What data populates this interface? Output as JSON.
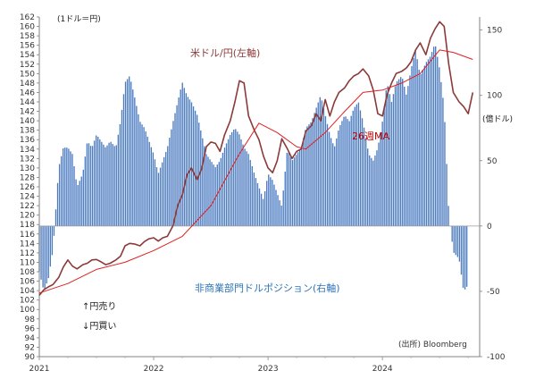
{
  "chart_data": {
    "type": "bar+line",
    "left_axis": {
      "unit_label": "(1ドル＝円)",
      "range": [
        90,
        162
      ],
      "ticks": [
        90,
        92,
        94,
        96,
        98,
        100,
        102,
        104,
        106,
        108,
        110,
        112,
        114,
        116,
        118,
        120,
        122,
        124,
        126,
        128,
        130,
        132,
        134,
        136,
        138,
        140,
        142,
        144,
        146,
        148,
        150,
        152,
        154,
        156,
        158,
        160,
        162
      ]
    },
    "right_axis": {
      "unit_label": "(億ドル)",
      "range": [
        -100,
        160
      ],
      "ticks": [
        -100,
        -50,
        0,
        50,
        100,
        150
      ]
    },
    "x_axis": {
      "range": [
        2021,
        2024.85
      ],
      "ticks": [
        2021,
        2022,
        2023,
        2024
      ],
      "tick_labels": [
        "2021",
        "2022",
        "2023",
        "2024"
      ]
    },
    "series": [
      {
        "name": "米ドル/円(左軸)",
        "kind": "line",
        "axis": "left",
        "color": "#8b3a3a",
        "points": [
          [
            2021.0,
            103.0
          ],
          [
            2021.04,
            104.2
          ],
          [
            2021.08,
            104.8
          ],
          [
            2021.12,
            105.3
          ],
          [
            2021.17,
            106.8
          ],
          [
            2021.21,
            109.0
          ],
          [
            2021.25,
            110.5
          ],
          [
            2021.29,
            109.2
          ],
          [
            2021.33,
            108.6
          ],
          [
            2021.38,
            109.5
          ],
          [
            2021.42,
            109.8
          ],
          [
            2021.46,
            110.5
          ],
          [
            2021.5,
            110.6
          ],
          [
            2021.54,
            110.1
          ],
          [
            2021.58,
            109.5
          ],
          [
            2021.62,
            109.8
          ],
          [
            2021.67,
            110.5
          ],
          [
            2021.71,
            111.3
          ],
          [
            2021.75,
            113.5
          ],
          [
            2021.79,
            114.0
          ],
          [
            2021.83,
            113.9
          ],
          [
            2021.88,
            113.5
          ],
          [
            2021.92,
            114.4
          ],
          [
            2021.96,
            115.0
          ],
          [
            2022.0,
            115.2
          ],
          [
            2022.04,
            114.5
          ],
          [
            2022.08,
            115.2
          ],
          [
            2022.12,
            115.5
          ],
          [
            2022.17,
            117.8
          ],
          [
            2022.21,
            122.0
          ],
          [
            2022.25,
            124.3
          ],
          [
            2022.29,
            128.5
          ],
          [
            2022.33,
            130.0
          ],
          [
            2022.38,
            127.5
          ],
          [
            2022.42,
            129.8
          ],
          [
            2022.46,
            134.5
          ],
          [
            2022.5,
            135.5
          ],
          [
            2022.54,
            135.2
          ],
          [
            2022.58,
            133.5
          ],
          [
            2022.62,
            137.0
          ],
          [
            2022.67,
            140.0
          ],
          [
            2022.71,
            144.0
          ],
          [
            2022.75,
            148.5
          ],
          [
            2022.79,
            148.0
          ],
          [
            2022.83,
            141.0
          ],
          [
            2022.88,
            138.0
          ],
          [
            2022.92,
            136.0
          ],
          [
            2022.96,
            132.5
          ],
          [
            2023.0,
            130.0
          ],
          [
            2023.04,
            129.0
          ],
          [
            2023.08,
            131.5
          ],
          [
            2023.12,
            136.2
          ],
          [
            2023.17,
            134.0
          ],
          [
            2023.21,
            132.0
          ],
          [
            2023.25,
            133.5
          ],
          [
            2023.29,
            134.0
          ],
          [
            2023.33,
            137.8
          ],
          [
            2023.38,
            139.0
          ],
          [
            2023.42,
            141.5
          ],
          [
            2023.46,
            140.0
          ],
          [
            2023.5,
            144.5
          ],
          [
            2023.54,
            141.0
          ],
          [
            2023.58,
            144.0
          ],
          [
            2023.62,
            146.0
          ],
          [
            2023.67,
            147.0
          ],
          [
            2023.71,
            148.5
          ],
          [
            2023.75,
            149.5
          ],
          [
            2023.79,
            150.0
          ],
          [
            2023.83,
            151.0
          ],
          [
            2023.88,
            149.5
          ],
          [
            2023.92,
            146.5
          ],
          [
            2023.96,
            141.5
          ],
          [
            2024.0,
            141.0
          ],
          [
            2024.04,
            145.5
          ],
          [
            2024.08,
            148.0
          ],
          [
            2024.12,
            150.0
          ],
          [
            2024.17,
            150.5
          ],
          [
            2024.21,
            151.2
          ],
          [
            2024.25,
            152.5
          ],
          [
            2024.29,
            155.0
          ],
          [
            2024.33,
            156.5
          ],
          [
            2024.38,
            154.0
          ],
          [
            2024.42,
            157.5
          ],
          [
            2024.46,
            159.5
          ],
          [
            2024.5,
            161.0
          ],
          [
            2024.54,
            160.0
          ],
          [
            2024.58,
            152.0
          ],
          [
            2024.62,
            146.0
          ],
          [
            2024.67,
            144.0
          ],
          [
            2024.71,
            143.0
          ],
          [
            2024.75,
            141.5
          ],
          [
            2024.79,
            146.0
          ]
        ]
      },
      {
        "name": "26週MA",
        "kind": "line",
        "axis": "left",
        "color": "#e02020",
        "points": [
          [
            2021.0,
            103.5
          ],
          [
            2021.25,
            105.5
          ],
          [
            2021.5,
            108.5
          ],
          [
            2021.75,
            110.0
          ],
          [
            2022.0,
            112.5
          ],
          [
            2022.25,
            115.5
          ],
          [
            2022.5,
            122.0
          ],
          [
            2022.75,
            133.0
          ],
          [
            2022.92,
            139.5
          ],
          [
            2023.08,
            137.5
          ],
          [
            2023.25,
            134.5
          ],
          [
            2023.33,
            134.0
          ],
          [
            2023.5,
            137.5
          ],
          [
            2023.67,
            142.0
          ],
          [
            2023.83,
            146.0
          ],
          [
            2024.0,
            146.5
          ],
          [
            2024.17,
            148.0
          ],
          [
            2024.33,
            150.0
          ],
          [
            2024.5,
            155.0
          ],
          [
            2024.62,
            154.5
          ],
          [
            2024.79,
            153.0
          ]
        ]
      },
      {
        "name": "非商業部門ドルポジション(右軸)",
        "kind": "bar",
        "axis": "right",
        "color": "#4a7ac0",
        "points": [
          [
            2021.0,
            -35.0
          ],
          [
            2021.04,
            -50.0
          ],
          [
            2021.08,
            -40.0
          ],
          [
            2021.12,
            -18.0
          ],
          [
            2021.17,
            45.0
          ],
          [
            2021.21,
            60.0
          ],
          [
            2021.25,
            60.0
          ],
          [
            2021.29,
            55.0
          ],
          [
            2021.33,
            30.0
          ],
          [
            2021.38,
            40.0
          ],
          [
            2021.42,
            65.0
          ],
          [
            2021.46,
            60.0
          ],
          [
            2021.5,
            70.0
          ],
          [
            2021.54,
            65.0
          ],
          [
            2021.58,
            60.0
          ],
          [
            2021.62,
            65.0
          ],
          [
            2021.67,
            60.0
          ],
          [
            2021.71,
            80.0
          ],
          [
            2021.75,
            110.0
          ],
          [
            2021.79,
            115.0
          ],
          [
            2021.83,
            100.0
          ],
          [
            2021.88,
            80.0
          ],
          [
            2021.92,
            75.0
          ],
          [
            2021.96,
            65.0
          ],
          [
            2022.0,
            55.0
          ],
          [
            2022.04,
            40.0
          ],
          [
            2022.08,
            50.0
          ],
          [
            2022.12,
            60.0
          ],
          [
            2022.17,
            80.0
          ],
          [
            2022.21,
            95.0
          ],
          [
            2022.25,
            110.0
          ],
          [
            2022.29,
            100.0
          ],
          [
            2022.33,
            95.0
          ],
          [
            2022.38,
            85.0
          ],
          [
            2022.42,
            70.0
          ],
          [
            2022.46,
            55.0
          ],
          [
            2022.5,
            50.0
          ],
          [
            2022.54,
            45.0
          ],
          [
            2022.58,
            50.0
          ],
          [
            2022.62,
            60.0
          ],
          [
            2022.67,
            70.0
          ],
          [
            2022.71,
            75.0
          ],
          [
            2022.75,
            70.0
          ],
          [
            2022.79,
            60.0
          ],
          [
            2022.83,
            55.0
          ],
          [
            2022.88,
            40.0
          ],
          [
            2022.92,
            30.0
          ],
          [
            2022.96,
            20.0
          ],
          [
            2023.0,
            40.0
          ],
          [
            2023.04,
            35.0
          ],
          [
            2023.08,
            25.0
          ],
          [
            2023.12,
            15.0
          ],
          [
            2023.17,
            60.0
          ],
          [
            2023.21,
            50.0
          ],
          [
            2023.25,
            55.0
          ],
          [
            2023.29,
            60.0
          ],
          [
            2023.33,
            75.0
          ],
          [
            2023.38,
            80.0
          ],
          [
            2023.42,
            90.0
          ],
          [
            2023.46,
            100.0
          ],
          [
            2023.5,
            85.0
          ],
          [
            2023.54,
            70.0
          ],
          [
            2023.58,
            60.0
          ],
          [
            2023.62,
            75.0
          ],
          [
            2023.67,
            85.0
          ],
          [
            2023.71,
            80.0
          ],
          [
            2023.75,
            90.0
          ],
          [
            2023.79,
            95.0
          ],
          [
            2023.83,
            80.0
          ],
          [
            2023.88,
            55.0
          ],
          [
            2023.92,
            50.0
          ],
          [
            2023.96,
            60.0
          ],
          [
            2024.0,
            80.0
          ],
          [
            2024.04,
            110.0
          ],
          [
            2024.08,
            95.0
          ],
          [
            2024.12,
            110.0
          ],
          [
            2024.17,
            115.0
          ],
          [
            2024.21,
            100.0
          ],
          [
            2024.25,
            120.0
          ],
          [
            2024.29,
            135.0
          ],
          [
            2024.33,
            115.0
          ],
          [
            2024.38,
            125.0
          ],
          [
            2024.42,
            130.0
          ],
          [
            2024.46,
            140.0
          ],
          [
            2024.5,
            120.0
          ],
          [
            2024.54,
            90.0
          ],
          [
            2024.58,
            10.0
          ],
          [
            2024.62,
            -20.0
          ],
          [
            2024.67,
            -25.0
          ],
          [
            2024.71,
            -50.0
          ],
          [
            2024.75,
            -45.0
          ]
        ]
      }
    ],
    "annotations": [
      {
        "text": "米ドル/円(左軸)",
        "color": "#8b3a3a"
      },
      {
        "text": "26週MA",
        "color": "#c00000"
      },
      {
        "text": "非商業部門ドルポジション(右軸)",
        "color": "#2e75b6"
      },
      {
        "text": "↑円売り",
        "color": "#222222"
      },
      {
        "text": "↓円買い",
        "color": "#222222"
      },
      {
        "text": "(出所) Bloomberg",
        "color": "#333333"
      }
    ],
    "grid": false
  }
}
